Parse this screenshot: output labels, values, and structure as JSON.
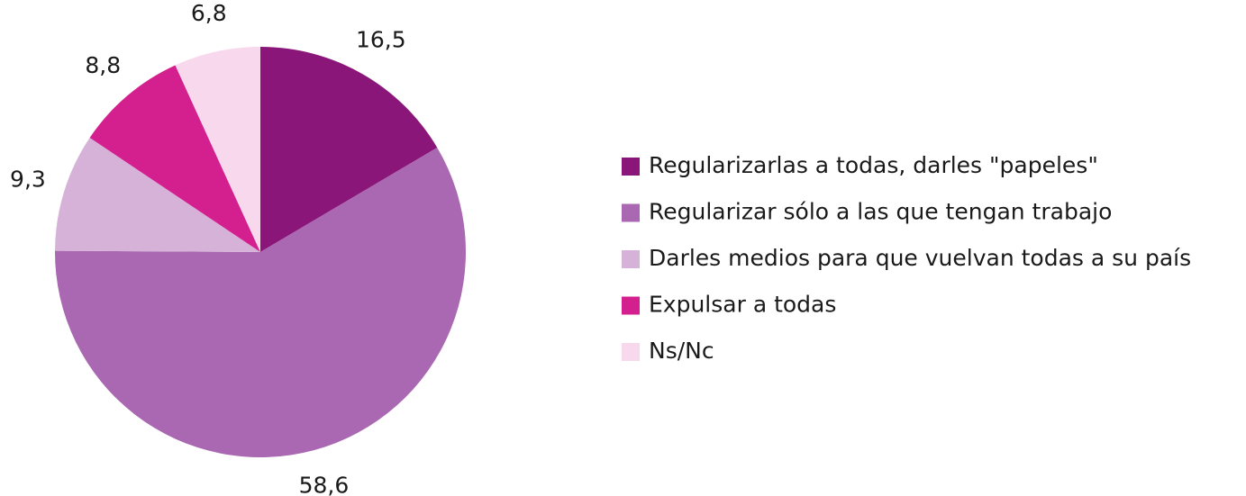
{
  "chart_data": {
    "type": "pie",
    "categories": [
      "Regularizarlas a todas, darles \"papeles\"",
      "Regularizar sólo a las que tengan trabajo",
      "Darles medios para que vuelvan todas a su país",
      "Expulsar a todas",
      "Ns/Nc"
    ],
    "values": [
      16.5,
      58.6,
      9.3,
      8.8,
      6.8
    ],
    "value_labels": [
      "16,5",
      "58,6",
      "9,3",
      "8,8",
      "6,8"
    ],
    "colors": [
      "#8b1679",
      "#a968b1",
      "#d6b2d8",
      "#d41f8e",
      "#f8d8ec"
    ],
    "legend": "right"
  }
}
